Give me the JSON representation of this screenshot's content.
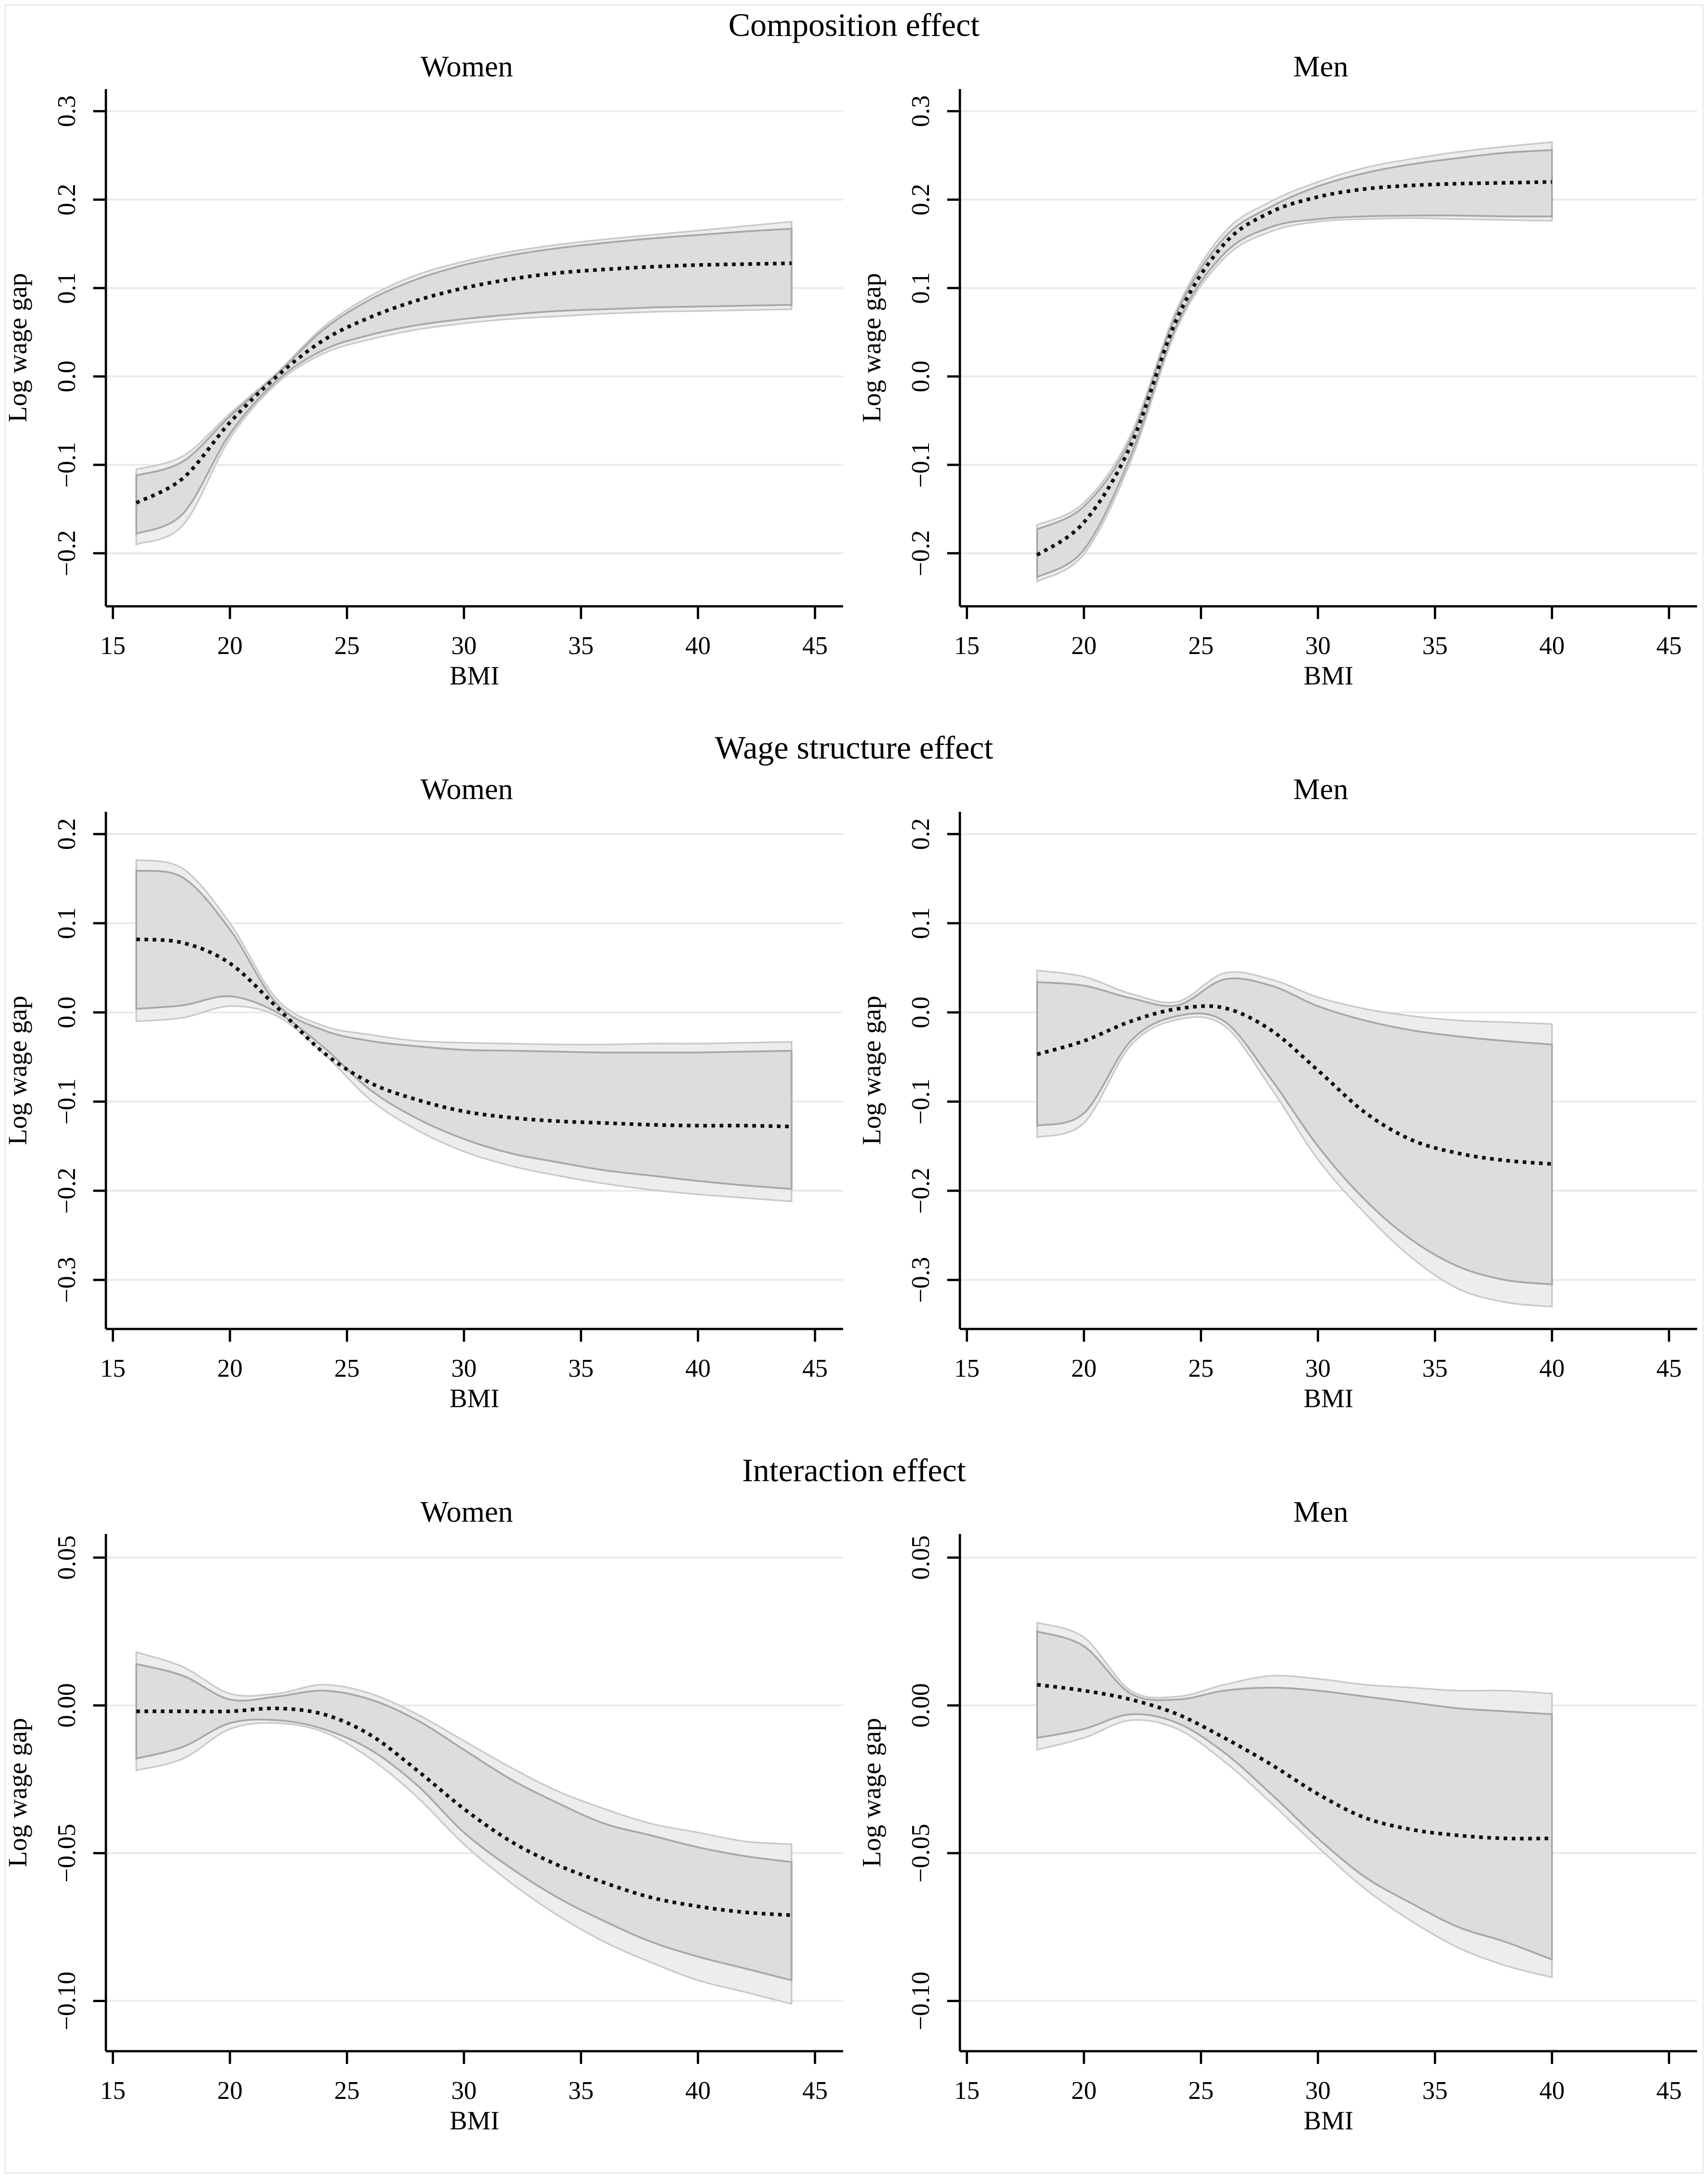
{
  "figure_title_note": "Decomposition of log wage gap by BMI, six panels",
  "style": {
    "background": "#ffffff",
    "frame_border": "#e2e2e2",
    "grid_color": "#e9e9e9",
    "axis_color": "#000000",
    "median_color": "#0d0d0d",
    "band_inner_fill": "#dcdcdc",
    "band_inner_edge": "#a8a8a8",
    "band_outer_fill": "#ebebeb",
    "band_outer_edge": "#c9c9c9"
  },
  "chart_data": [
    {
      "type": "line",
      "title": "Composition effect",
      "xlabel": "BMI",
      "ylabel": "Log wage gap",
      "grid": "on",
      "legend": "none",
      "xlim": [
        14.7,
        46.2
      ],
      "xticks": [
        15,
        20,
        25,
        30,
        35,
        40,
        45
      ],
      "ylim": [
        -0.26,
        0.325
      ],
      "yticks": [
        {
          "v": 0.3,
          "label": "0.3"
        },
        {
          "v": 0.2,
          "label": "0.2"
        },
        {
          "v": 0.1,
          "label": "0.1"
        },
        {
          "v": 0.0,
          "label": "0.0"
        },
        {
          "v": -0.1,
          "label": "−0.1"
        },
        {
          "v": -0.2,
          "label": "−0.2"
        }
      ],
      "panels": [
        {
          "subtitle": "Women",
          "x": [
            16,
            18,
            20,
            22,
            24,
            26,
            28,
            30,
            32,
            34,
            36,
            38,
            40,
            42,
            44
          ],
          "mid": [
            -0.143,
            -0.115,
            -0.052,
            0.0,
            0.041,
            0.067,
            0.086,
            0.1,
            0.11,
            0.117,
            0.121,
            0.124,
            0.126,
            0.127,
            0.128
          ],
          "inner": {
            "hi": [
              -0.112,
              -0.096,
              -0.045,
              0.002,
              0.053,
              0.087,
              0.11,
              0.126,
              0.137,
              0.145,
              0.151,
              0.156,
              0.16,
              0.164,
              0.167
            ],
            "lo": [
              -0.178,
              -0.155,
              -0.065,
              -0.005,
              0.03,
              0.047,
              0.058,
              0.065,
              0.07,
              0.074,
              0.076,
              0.078,
              0.079,
              0.08,
              0.081
            ]
          },
          "outer": {
            "hi": [
              -0.105,
              -0.09,
              -0.042,
              0.004,
              0.056,
              0.091,
              0.115,
              0.13,
              0.141,
              0.149,
              0.155,
              0.16,
              0.165,
              0.17,
              0.175
            ],
            "lo": [
              -0.19,
              -0.168,
              -0.07,
              -0.008,
              0.026,
              0.042,
              0.053,
              0.06,
              0.065,
              0.068,
              0.071,
              0.073,
              0.074,
              0.075,
              0.076
            ]
          }
        },
        {
          "subtitle": "Men",
          "x": [
            18,
            20,
            22,
            24,
            26,
            28,
            30,
            32,
            34,
            36,
            38,
            40
          ],
          "mid": [
            -0.202,
            -0.165,
            -0.078,
            0.067,
            0.15,
            0.186,
            0.203,
            0.212,
            0.216,
            0.218,
            0.219,
            0.22
          ],
          "inner": {
            "hi": [
              -0.173,
              -0.147,
              -0.071,
              0.074,
              0.157,
              0.192,
              0.215,
              0.23,
              0.24,
              0.247,
              0.253,
              0.256
            ],
            "lo": [
              -0.227,
              -0.196,
              -0.09,
              0.06,
              0.139,
              0.169,
              0.178,
              0.181,
              0.182,
              0.182,
              0.181,
              0.181
            ]
          },
          "outer": {
            "hi": [
              -0.168,
              -0.143,
              -0.066,
              0.078,
              0.163,
              0.198,
              0.22,
              0.236,
              0.246,
              0.254,
              0.26,
              0.265
            ],
            "lo": [
              -0.232,
              -0.201,
              -0.096,
              0.056,
              0.134,
              0.164,
              0.175,
              0.178,
              0.179,
              0.178,
              0.177,
              0.176
            ]
          }
        }
      ]
    },
    {
      "type": "line",
      "title": "Wage structure effect",
      "xlabel": "BMI",
      "ylabel": "Log wage gap",
      "grid": "on",
      "legend": "none",
      "xlim": [
        14.7,
        46.2
      ],
      "xticks": [
        15,
        20,
        25,
        30,
        35,
        40,
        45
      ],
      "ylim": [
        -0.355,
        0.225
      ],
      "yticks": [
        {
          "v": 0.2,
          "label": "0.2"
        },
        {
          "v": 0.1,
          "label": "0.1"
        },
        {
          "v": 0.0,
          "label": "0.0"
        },
        {
          "v": -0.1,
          "label": "−0.1"
        },
        {
          "v": -0.2,
          "label": "−0.2"
        },
        {
          "v": -0.3,
          "label": "−0.3"
        }
      ],
      "panels": [
        {
          "subtitle": "Women",
          "x": [
            16,
            18,
            20,
            22,
            24,
            26,
            28,
            30,
            32,
            34,
            36,
            38,
            40,
            42,
            44
          ],
          "mid": [
            0.082,
            0.078,
            0.055,
            0.006,
            -0.045,
            -0.079,
            -0.098,
            -0.111,
            -0.118,
            -0.122,
            -0.124,
            -0.126,
            -0.127,
            -0.127,
            -0.128
          ],
          "inner": {
            "hi": [
              0.159,
              0.151,
              0.093,
              0.01,
              -0.02,
              -0.032,
              -0.038,
              -0.042,
              -0.043,
              -0.044,
              -0.045,
              -0.045,
              -0.045,
              -0.044,
              -0.043
            ],
            "lo": [
              0.004,
              0.008,
              0.018,
              0.0,
              -0.039,
              -0.087,
              -0.119,
              -0.142,
              -0.158,
              -0.168,
              -0.177,
              -0.183,
              -0.189,
              -0.194,
              -0.198
            ]
          },
          "outer": {
            "hi": [
              0.171,
              0.161,
              0.1,
              0.015,
              -0.015,
              -0.025,
              -0.032,
              -0.034,
              -0.035,
              -0.036,
              -0.036,
              -0.035,
              -0.035,
              -0.034,
              -0.033
            ],
            "lo": [
              -0.01,
              -0.006,
              0.007,
              -0.004,
              -0.046,
              -0.098,
              -0.132,
              -0.156,
              -0.172,
              -0.183,
              -0.192,
              -0.199,
              -0.204,
              -0.208,
              -0.212
            ]
          }
        },
        {
          "subtitle": "Men",
          "x": [
            18,
            20,
            22,
            24,
            26,
            28,
            30,
            32,
            34,
            36,
            38,
            40
          ],
          "mid": [
            -0.047,
            -0.032,
            -0.01,
            0.004,
            0.005,
            -0.02,
            -0.065,
            -0.112,
            -0.143,
            -0.158,
            -0.166,
            -0.17
          ],
          "inner": {
            "hi": [
              0.034,
              0.03,
              0.016,
              0.008,
              0.037,
              0.03,
              0.007,
              -0.009,
              -0.02,
              -0.027,
              -0.032,
              -0.036
            ],
            "lo": [
              -0.127,
              -0.113,
              -0.032,
              -0.004,
              -0.01,
              -0.075,
              -0.15,
              -0.21,
              -0.255,
              -0.285,
              -0.3,
              -0.305
            ]
          },
          "outer": {
            "hi": [
              0.047,
              0.04,
              0.021,
              0.012,
              0.044,
              0.037,
              0.017,
              0.004,
              -0.004,
              -0.009,
              -0.011,
              -0.013
            ],
            "lo": [
              -0.14,
              -0.124,
              -0.037,
              -0.008,
              -0.015,
              -0.085,
              -0.165,
              -0.225,
              -0.275,
              -0.31,
              -0.325,
              -0.33
            ]
          }
        }
      ]
    },
    {
      "type": "line",
      "title": "Interaction effect",
      "xlabel": "BMI",
      "ylabel": "Log wage gap",
      "grid": "on",
      "legend": "none",
      "xlim": [
        14.7,
        46.2
      ],
      "xticks": [
        15,
        20,
        25,
        30,
        35,
        40,
        45
      ],
      "ylim": [
        -0.117,
        0.058
      ],
      "yticks": [
        {
          "v": 0.05,
          "label": "0.05"
        },
        {
          "v": 0.0,
          "label": "0.00"
        },
        {
          "v": -0.05,
          "label": "−0.05"
        },
        {
          "v": -0.1,
          "label": "−0.10"
        }
      ],
      "panels": [
        {
          "subtitle": "Women",
          "x": [
            16,
            18,
            20,
            22,
            24,
            26,
            28,
            30,
            32,
            34,
            36,
            38,
            40,
            42,
            44
          ],
          "mid": [
            -0.002,
            -0.002,
            -0.002,
            -0.001,
            -0.003,
            -0.01,
            -0.022,
            -0.035,
            -0.046,
            -0.054,
            -0.06,
            -0.065,
            -0.068,
            -0.07,
            -0.071
          ],
          "inner": {
            "hi": [
              0.014,
              0.01,
              0.002,
              0.003,
              0.005,
              0.002,
              -0.005,
              -0.015,
              -0.025,
              -0.033,
              -0.04,
              -0.044,
              -0.048,
              -0.051,
              -0.053
            ],
            "lo": [
              -0.018,
              -0.014,
              -0.006,
              -0.005,
              -0.008,
              -0.015,
              -0.027,
              -0.043,
              -0.055,
              -0.065,
              -0.073,
              -0.08,
              -0.085,
              -0.089,
              -0.093
            ]
          },
          "outer": {
            "hi": [
              0.018,
              0.013,
              0.004,
              0.004,
              0.007,
              0.004,
              -0.003,
              -0.012,
              -0.021,
              -0.029,
              -0.035,
              -0.04,
              -0.043,
              -0.046,
              -0.047
            ],
            "lo": [
              -0.022,
              -0.018,
              -0.008,
              -0.006,
              -0.009,
              -0.018,
              -0.031,
              -0.047,
              -0.06,
              -0.071,
              -0.08,
              -0.087,
              -0.093,
              -0.097,
              -0.101
            ]
          }
        },
        {
          "subtitle": "Men",
          "x": [
            18,
            20,
            22,
            24,
            26,
            28,
            30,
            32,
            34,
            36,
            38,
            40
          ],
          "mid": [
            0.007,
            0.005,
            0.002,
            -0.003,
            -0.011,
            -0.02,
            -0.03,
            -0.038,
            -0.042,
            -0.044,
            -0.045,
            -0.045
          ],
          "inner": {
            "hi": [
              0.025,
              0.02,
              0.004,
              0.002,
              0.005,
              0.006,
              0.005,
              0.003,
              0.001,
              -0.001,
              -0.002,
              -0.003
            ],
            "lo": [
              -0.011,
              -0.008,
              -0.003,
              -0.006,
              -0.016,
              -0.03,
              -0.045,
              -0.058,
              -0.067,
              -0.075,
              -0.08,
              -0.086
            ]
          },
          "outer": {
            "hi": [
              0.028,
              0.023,
              0.005,
              0.003,
              0.007,
              0.01,
              0.009,
              0.007,
              0.006,
              0.005,
              0.005,
              0.004
            ],
            "lo": [
              -0.015,
              -0.011,
              -0.005,
              -0.008,
              -0.019,
              -0.033,
              -0.048,
              -0.062,
              -0.073,
              -0.082,
              -0.088,
              -0.092
            ]
          }
        }
      ]
    }
  ]
}
